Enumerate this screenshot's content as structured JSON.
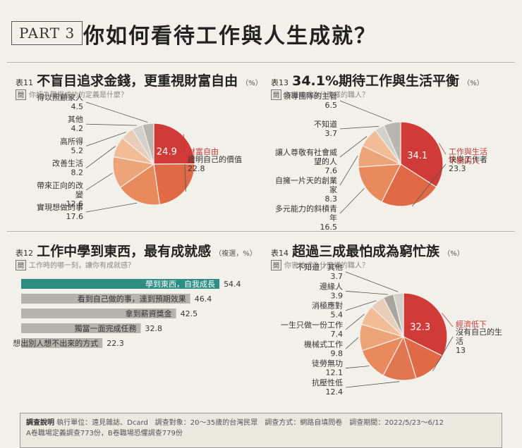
{
  "header": {
    "part": "PART 3",
    "title": "你如何看待工作與人生成就？"
  },
  "panels": {
    "p11": {
      "num": "表11",
      "title": "不盲目追求金錢，更重視財富自由",
      "unit": "（%）",
      "q_tag": "問",
      "question": "你認為職場成功的定義是什麼？"
    },
    "p12": {
      "num": "表12",
      "title": "工作中學到東西，最有成就感",
      "unit": "（複選，%）",
      "q_tag": "問",
      "question": "工作時的哪一刻，讓你有成就感？"
    },
    "p13": {
      "num": "表13",
      "title": "34.1%期待工作與生活平衡",
      "unit": "（%）",
      "q_tag": "問",
      "question": "你期待成為什麼樣的職人？"
    },
    "p14": {
      "num": "表14",
      "title": "超過三成最怕成為窮忙族",
      "unit": "（%）",
      "q_tag": "問",
      "question": "你害怕成為什麼樣的職人？"
    }
  },
  "chart_data": [
    {
      "id": "p11",
      "type": "pie",
      "title": "不盲目追求金錢，更重視財富自由",
      "unit": "%",
      "slices": [
        {
          "label": "財富自由",
          "value": 24.9,
          "color": "#d03a37",
          "highlight": true
        },
        {
          "label": "證明自己的價值",
          "value": 22.8,
          "color": "#e06a45"
        },
        {
          "label": "實現想做的事",
          "value": 17.6,
          "color": "#e98a5c"
        },
        {
          "label": "帶來正向的改變",
          "value": 12.6,
          "color": "#eea479"
        },
        {
          "label": "改善生活",
          "value": 8.2,
          "color": "#f2bc96"
        },
        {
          "label": "高所得",
          "value": 5.2,
          "color": "#e8cdb8"
        },
        {
          "label": "其他",
          "value": 4.2,
          "color": "#d3d0cb"
        },
        {
          "label": "得以照顧家人",
          "value": 4.5,
          "color": "#b9b6b0"
        }
      ]
    },
    {
      "id": "p12",
      "type": "bar",
      "orientation": "horizontal",
      "title": "工作中學到東西，最有成就感",
      "unit": "%",
      "categories": [
        "學到東西，自我成長",
        "看到自己做的事，達到預期效果",
        "拿到薪資獎金",
        "獨當一面完成任務",
        "想出別人想不出來的方式"
      ],
      "values": [
        54.4,
        46.4,
        42.5,
        32.8,
        22.3
      ],
      "colors": [
        "#2d8d85",
        "#b5b3ae",
        "#b5b3ae",
        "#b5b3ae",
        "#b5b3ae"
      ],
      "xlim": [
        0,
        60
      ]
    },
    {
      "id": "p13",
      "type": "pie",
      "title": "34.1%期待工作與生活平衡",
      "unit": "%",
      "slices": [
        {
          "label": "工作與生活平衡的人",
          "value": 34.1,
          "color": "#d03a37",
          "highlight": true
        },
        {
          "label": "快樂工作者",
          "value": 23.3,
          "color": "#e06a45"
        },
        {
          "label": "多元能力的斜槓青年",
          "value": 16.5,
          "color": "#e98a5c"
        },
        {
          "label": "自擁一片天的創業家",
          "value": 8.3,
          "color": "#eea479"
        },
        {
          "label": "讓人尊敬有社會威望的人",
          "value": 7.6,
          "color": "#f2bc96"
        },
        {
          "label": "不知道",
          "value": 3.7,
          "color": "#d3d0cb"
        },
        {
          "label": "領導團隊的主管",
          "value": 6.5,
          "color": "#b9b6b0"
        }
      ]
    },
    {
      "id": "p14",
      "type": "pie",
      "title": "超過三成最怕成為窮忙族",
      "unit": "%",
      "slices": [
        {
          "label": "經濟低下",
          "value": 32.3,
          "color": "#d03a37",
          "highlight": true
        },
        {
          "label": "沒有自己的生活",
          "value": 13.0,
          "color": "#e06a45"
        },
        {
          "label": "抗壓性低",
          "value": 12.4,
          "color": "#e27650"
        },
        {
          "label": "徒勞無功",
          "value": 12.1,
          "color": "#e98a5c"
        },
        {
          "label": "機械式工作",
          "value": 9.8,
          "color": "#eea479"
        },
        {
          "label": "一生只做一份工作",
          "value": 7.4,
          "color": "#f2bc96"
        },
        {
          "label": "消極應對",
          "value": 5.4,
          "color": "#e8cdb8"
        },
        {
          "label": "邊緣人",
          "value": 3.9,
          "color": "#a8a59f"
        },
        {
          "label": "不知道／其他",
          "value": 3.7,
          "color": "#d3d0cb"
        }
      ]
    }
  ],
  "footer": {
    "label": "調查說明",
    "text": "執行單位：遠見雜誌、Dcard　調查對象：20～35歲的台灣民眾　調查方式：網路自填問卷　調查期間：2022/5/23～6/12",
    "text2": "A卷職場定義調查773份，B卷職場恐懼調查779份"
  }
}
